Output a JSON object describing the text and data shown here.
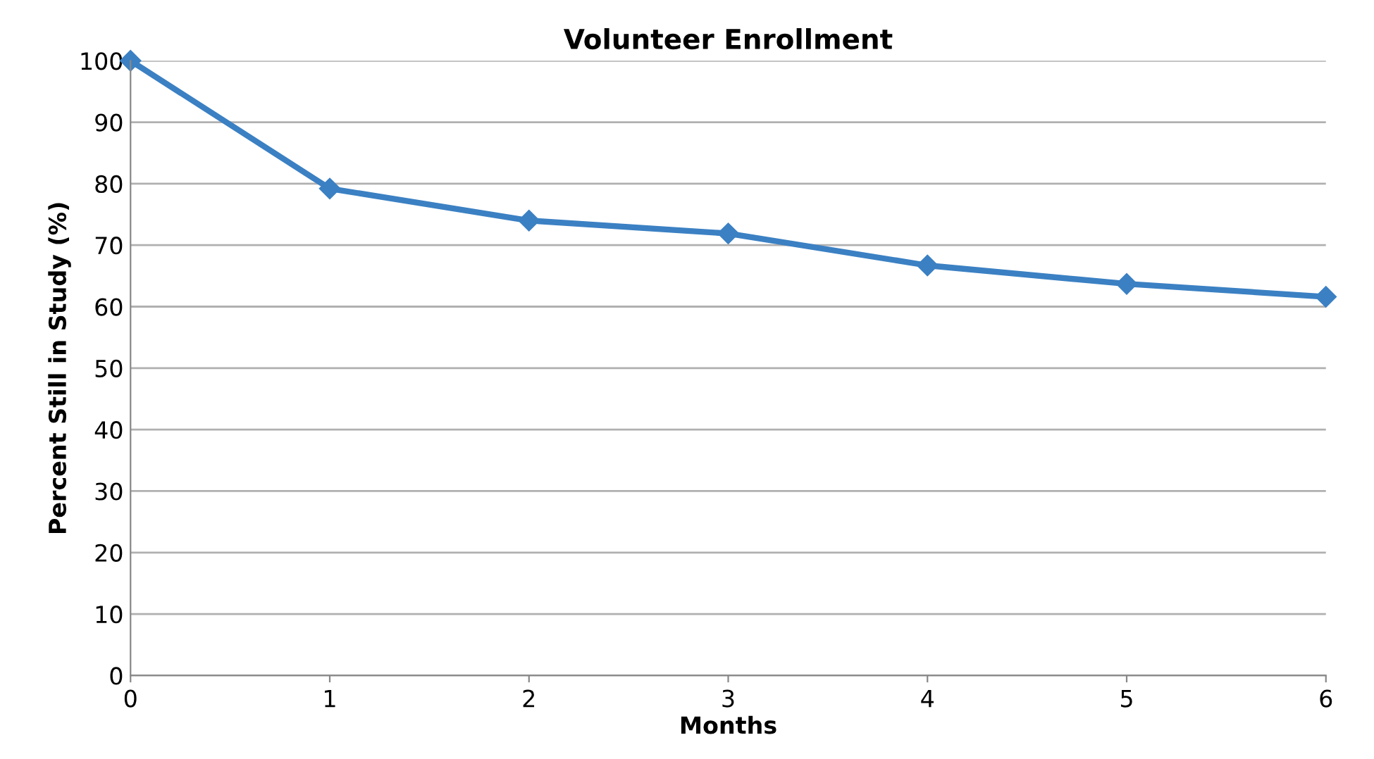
{
  "chart_data": {
    "type": "line",
    "title": "Volunteer Enrollment",
    "xlabel": "Months",
    "ylabel": "Percent Still in Study (%)",
    "x": [
      0,
      1,
      2,
      3,
      4,
      5,
      6
    ],
    "series": [
      {
        "color": "#3b80c3",
        "values": [
          100,
          79.2,
          74,
          71.9,
          66.7,
          63.7,
          61.6
        ]
      }
    ],
    "xlim": [
      0,
      6
    ],
    "xticks": [
      0,
      1,
      2,
      3,
      4,
      5,
      6
    ],
    "ylim": [
      0,
      100
    ],
    "yticks": [
      0,
      10,
      20,
      30,
      40,
      50,
      60,
      70,
      80,
      90,
      100
    ],
    "grid": "y",
    "marker": "diamond",
    "line_style": "solid",
    "legend": false
  }
}
